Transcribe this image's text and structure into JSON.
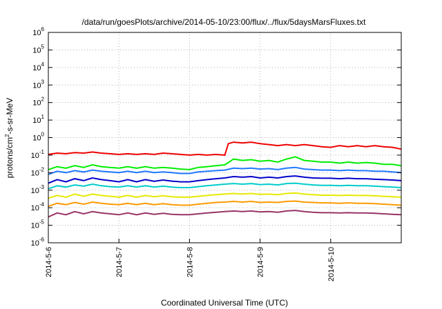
{
  "chart_data": {
    "type": "line",
    "title": "/data/run/goesPlots/archive/2014-05-10/23:00/flux/../flux/5daysMarsFluxes.txt",
    "xlabel": "Coordinated Universal Time (UTC)",
    "ylabel": "protons/cm2-s-sr-MeV",
    "ylabel_parts": {
      "pre": "protons/cm",
      "sup": "2",
      "post": "-s-sr-MeV"
    },
    "yscale": "log",
    "ylim": [
      1e-06,
      1000000.0
    ],
    "y_ticks": [
      {
        "value": 1e-06,
        "base": "10",
        "exp": "-6"
      },
      {
        "value": 1e-05,
        "base": "10",
        "exp": "-5"
      },
      {
        "value": 0.0001,
        "base": "10",
        "exp": "-4"
      },
      {
        "value": 0.001,
        "base": "10",
        "exp": "-3"
      },
      {
        "value": 0.01,
        "base": "10",
        "exp": "-2"
      },
      {
        "value": 0.1,
        "base": "10",
        "exp": "-1"
      },
      {
        "value": 1.0,
        "base": "10",
        "exp": "0"
      },
      {
        "value": 10.0,
        "base": "10",
        "exp": "1"
      },
      {
        "value": 100.0,
        "base": "10",
        "exp": "2"
      },
      {
        "value": 1000.0,
        "base": "10",
        "exp": "3"
      },
      {
        "value": 10000.0,
        "base": "10",
        "exp": "4"
      },
      {
        "value": 100000.0,
        "base": "10",
        "exp": "5"
      },
      {
        "value": 1000000.0,
        "base": "10",
        "exp": "6"
      }
    ],
    "x_ticks": [
      {
        "value": 0,
        "label": "2014-5-6"
      },
      {
        "value": 1,
        "label": "2014-5-7"
      },
      {
        "value": 2,
        "label": "2014-5-8"
      },
      {
        "value": 3,
        "label": "2014-5-9"
      },
      {
        "value": 4,
        "label": "2014-5-10"
      }
    ],
    "xlim": [
      0,
      5
    ],
    "grid": true,
    "series": [
      {
        "color": "#ee0000",
        "x": [
          0,
          0.125,
          0.25,
          0.375,
          0.5,
          0.625,
          0.75,
          0.875,
          1,
          1.125,
          1.25,
          1.375,
          1.5,
          1.625,
          1.75,
          1.875,
          2,
          2.125,
          2.25,
          2.375,
          2.5,
          2.55,
          2.625,
          2.75,
          2.875,
          3,
          3.125,
          3.25,
          3.375,
          3.5,
          3.625,
          3.75,
          3.875,
          4,
          4.125,
          4.25,
          4.375,
          4.5,
          4.625,
          4.75,
          4.875,
          5
        ],
        "y": [
          0.11,
          0.13,
          0.12,
          0.14,
          0.13,
          0.15,
          0.13,
          0.12,
          0.11,
          0.12,
          0.11,
          0.12,
          0.11,
          0.13,
          0.12,
          0.11,
          0.1,
          0.11,
          0.1,
          0.11,
          0.1,
          0.45,
          0.55,
          0.5,
          0.55,
          0.45,
          0.4,
          0.35,
          0.4,
          0.35,
          0.4,
          0.35,
          0.3,
          0.28,
          0.35,
          0.3,
          0.35,
          0.3,
          0.35,
          0.3,
          0.28,
          0.22
        ]
      },
      {
        "color": "#00ee00",
        "x": [
          0,
          0.125,
          0.25,
          0.375,
          0.5,
          0.625,
          0.75,
          0.875,
          1,
          1.125,
          1.25,
          1.375,
          1.5,
          1.625,
          1.75,
          1.875,
          2,
          2.125,
          2.25,
          2.375,
          2.5,
          2.625,
          2.75,
          2.875,
          3,
          3.125,
          3.25,
          3.375,
          3.5,
          3.625,
          3.75,
          3.875,
          4,
          4.125,
          4.25,
          4.375,
          4.5,
          4.625,
          4.75,
          4.875,
          5
        ],
        "y": [
          0.015,
          0.022,
          0.018,
          0.025,
          0.02,
          0.028,
          0.022,
          0.02,
          0.018,
          0.022,
          0.018,
          0.022,
          0.018,
          0.02,
          0.018,
          0.016,
          0.015,
          0.02,
          0.022,
          0.025,
          0.028,
          0.06,
          0.05,
          0.055,
          0.045,
          0.05,
          0.04,
          0.06,
          0.08,
          0.05,
          0.045,
          0.04,
          0.04,
          0.035,
          0.04,
          0.035,
          0.038,
          0.035,
          0.03,
          0.03,
          0.025
        ]
      },
      {
        "color": "#1e78ff",
        "x": [
          0,
          0.125,
          0.25,
          0.375,
          0.5,
          0.625,
          0.75,
          0.875,
          1,
          1.125,
          1.25,
          1.375,
          1.5,
          1.625,
          1.75,
          1.875,
          2,
          2.125,
          2.25,
          2.375,
          2.5,
          2.625,
          2.75,
          2.875,
          3,
          3.125,
          3.25,
          3.375,
          3.5,
          3.625,
          3.75,
          3.875,
          4,
          4.125,
          4.25,
          4.375,
          4.5,
          4.625,
          4.75,
          4.875,
          5
        ],
        "y": [
          0.008,
          0.012,
          0.01,
          0.013,
          0.011,
          0.014,
          0.012,
          0.011,
          0.01,
          0.012,
          0.01,
          0.012,
          0.01,
          0.011,
          0.01,
          0.009,
          0.009,
          0.011,
          0.012,
          0.013,
          0.014,
          0.018,
          0.017,
          0.018,
          0.016,
          0.017,
          0.015,
          0.018,
          0.02,
          0.016,
          0.015,
          0.014,
          0.014,
          0.013,
          0.014,
          0.013,
          0.013,
          0.012,
          0.012,
          0.011,
          0.01
        ]
      },
      {
        "color": "#0000cc",
        "x": [
          0,
          0.125,
          0.25,
          0.375,
          0.5,
          0.625,
          0.75,
          0.875,
          1,
          1.125,
          1.25,
          1.375,
          1.5,
          1.625,
          1.75,
          1.875,
          2,
          2.125,
          2.25,
          2.375,
          2.5,
          2.625,
          2.75,
          2.875,
          3,
          3.125,
          3.25,
          3.375,
          3.5,
          3.625,
          3.75,
          3.875,
          4,
          4.125,
          4.25,
          4.375,
          4.5,
          4.625,
          4.75,
          4.875,
          5
        ],
        "y": [
          0.0025,
          0.004,
          0.003,
          0.0045,
          0.0035,
          0.005,
          0.004,
          0.0035,
          0.003,
          0.004,
          0.003,
          0.004,
          0.0032,
          0.0038,
          0.0033,
          0.003,
          0.003,
          0.0035,
          0.004,
          0.0045,
          0.005,
          0.006,
          0.0055,
          0.006,
          0.005,
          0.0055,
          0.005,
          0.006,
          0.0065,
          0.0055,
          0.005,
          0.0048,
          0.0048,
          0.0045,
          0.0048,
          0.0045,
          0.0045,
          0.0042,
          0.004,
          0.0038,
          0.0035
        ]
      },
      {
        "color": "#00cccc",
        "x": [
          0,
          0.125,
          0.25,
          0.375,
          0.5,
          0.625,
          0.75,
          0.875,
          1,
          1.125,
          1.25,
          1.375,
          1.5,
          1.625,
          1.75,
          1.875,
          2,
          2.125,
          2.25,
          2.375,
          2.5,
          2.625,
          2.75,
          2.875,
          3,
          3.125,
          3.25,
          3.375,
          3.5,
          3.625,
          3.75,
          3.875,
          4,
          4.125,
          4.25,
          4.375,
          4.5,
          4.625,
          4.75,
          4.875,
          5
        ],
        "y": [
          0.0012,
          0.0018,
          0.0015,
          0.002,
          0.0017,
          0.0022,
          0.0018,
          0.0016,
          0.0015,
          0.0018,
          0.0015,
          0.0018,
          0.0015,
          0.0017,
          0.0015,
          0.0014,
          0.0014,
          0.0016,
          0.0018,
          0.002,
          0.0022,
          0.0024,
          0.0022,
          0.0024,
          0.0021,
          0.0022,
          0.002,
          0.0024,
          0.0025,
          0.0022,
          0.002,
          0.0019,
          0.0019,
          0.0018,
          0.0019,
          0.0018,
          0.0018,
          0.0017,
          0.0016,
          0.0015,
          0.0014
        ]
      },
      {
        "color": "#e8e800",
        "x": [
          0,
          0.125,
          0.25,
          0.375,
          0.5,
          0.625,
          0.75,
          0.875,
          1,
          1.125,
          1.25,
          1.375,
          1.5,
          1.625,
          1.75,
          1.875,
          2,
          2.125,
          2.25,
          2.375,
          2.5,
          2.625,
          2.75,
          2.875,
          3,
          3.125,
          3.25,
          3.375,
          3.5,
          3.625,
          3.75,
          3.875,
          4,
          4.125,
          4.25,
          4.375,
          4.5,
          4.625,
          4.75,
          4.875,
          5
        ],
        "y": [
          0.00035,
          0.0005,
          0.0004,
          0.0006,
          0.00045,
          0.0006,
          0.0005,
          0.00045,
          0.0004,
          0.0005,
          0.0004,
          0.0005,
          0.00042,
          0.00048,
          0.00042,
          0.0004,
          0.0004,
          0.00045,
          0.0005,
          0.00055,
          0.0006,
          0.00065,
          0.0006,
          0.00065,
          0.00058,
          0.0006,
          0.00055,
          0.00065,
          0.0007,
          0.0006,
          0.00055,
          0.00052,
          0.00052,
          0.0005,
          0.00052,
          0.0005,
          0.0005,
          0.00048,
          0.00045,
          0.00042,
          0.0004
        ]
      },
      {
        "color": "#ff9900",
        "x": [
          0,
          0.125,
          0.25,
          0.375,
          0.5,
          0.625,
          0.75,
          0.875,
          1,
          1.125,
          1.25,
          1.375,
          1.5,
          1.625,
          1.75,
          1.875,
          2,
          2.125,
          2.25,
          2.375,
          2.5,
          2.625,
          2.75,
          2.875,
          3,
          3.125,
          3.25,
          3.375,
          3.5,
          3.625,
          3.75,
          3.875,
          4,
          4.125,
          4.25,
          4.375,
          4.5,
          4.625,
          4.75,
          4.875,
          5
        ],
        "y": [
          0.00012,
          0.00018,
          0.00015,
          0.0002,
          0.00016,
          0.00021,
          0.00018,
          0.00016,
          0.00015,
          0.00018,
          0.00015,
          0.00018,
          0.00015,
          0.00017,
          0.00015,
          0.00014,
          0.00014,
          0.00016,
          0.00018,
          0.0002,
          0.00021,
          0.00023,
          0.00021,
          0.00023,
          0.0002,
          0.00021,
          0.0002,
          0.00023,
          0.00024,
          0.00021,
          0.0002,
          0.00019,
          0.00019,
          0.00018,
          0.00019,
          0.00018,
          0.00018,
          0.00017,
          0.00016,
          0.00015,
          0.00014
        ]
      },
      {
        "color": "#993366",
        "x": [
          0,
          0.125,
          0.25,
          0.375,
          0.5,
          0.625,
          0.75,
          0.875,
          1,
          1.125,
          1.25,
          1.375,
          1.5,
          1.625,
          1.75,
          1.875,
          2,
          2.125,
          2.25,
          2.375,
          2.5,
          2.625,
          2.75,
          2.875,
          3,
          3.125,
          3.25,
          3.375,
          3.5,
          3.625,
          3.75,
          3.875,
          4,
          4.125,
          4.25,
          4.375,
          4.5,
          4.625,
          4.75,
          4.875,
          5
        ],
        "y": [
          3e-05,
          5e-05,
          4e-05,
          6e-05,
          4.5e-05,
          6e-05,
          5e-05,
          4.5e-05,
          4e-05,
          5e-05,
          4e-05,
          5e-05,
          4.2e-05,
          4.8e-05,
          4.2e-05,
          4e-05,
          4e-05,
          4.5e-05,
          5e-05,
          5.5e-05,
          6e-05,
          6.5e-05,
          6e-05,
          6.5e-05,
          5.8e-05,
          6e-05,
          5.5e-05,
          6.5e-05,
          7e-05,
          6e-05,
          5.5e-05,
          5.2e-05,
          5.2e-05,
          5e-05,
          5.2e-05,
          5e-05,
          5e-05,
          4.8e-05,
          4.5e-05,
          4.2e-05,
          4e-05
        ]
      }
    ]
  }
}
